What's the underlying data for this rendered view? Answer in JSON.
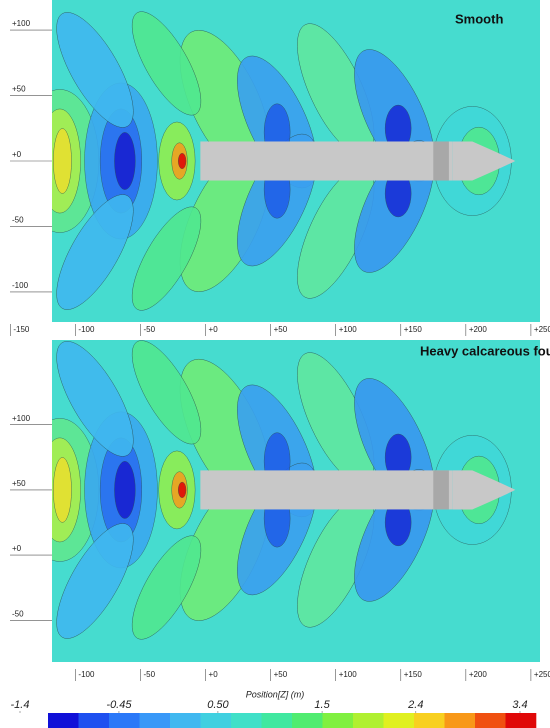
{
  "chart_data": [
    {
      "type": "contour",
      "title": "Smooth",
      "xlim": [
        -118,
        257
      ],
      "ylim": [
        -123,
        123
      ],
      "xticks": [
        {
          "value": -150,
          "label": "-150"
        },
        -100,
        -50,
        {
          "value": 0,
          "label": "+0"
        },
        {
          "value": 50,
          "label": "+50"
        },
        {
          "value": 100,
          "label": "+100"
        },
        {
          "value": 150,
          "label": "+150"
        },
        {
          "value": 200,
          "label": "+200"
        },
        {
          "value": 250,
          "label": "+250"
        }
      ],
      "yticks": [
        {
          "value": 100,
          "label": "+100"
        },
        {
          "value": 50,
          "label": "+50"
        },
        {
          "value": 0,
          "label": "+0"
        },
        -50,
        -100
      ]
    },
    {
      "type": "contour",
      "title": "Heavy calcareous fouling",
      "xlim": [
        -118,
        257
      ],
      "ylim": [
        -82,
        165
      ],
      "xticks": [
        -100,
        -50,
        {
          "value": 0,
          "label": "+0"
        },
        {
          "value": 50,
          "label": "+50"
        },
        {
          "value": 100,
          "label": "+100"
        },
        {
          "value": 150,
          "label": "+150"
        },
        {
          "value": 200,
          "label": "+200"
        },
        {
          "value": 250,
          "label": "+250"
        }
      ],
      "yticks": [
        {
          "value": 100,
          "label": "+100"
        },
        {
          "value": 50,
          "label": "+50"
        },
        {
          "value": 0,
          "label": "+0"
        },
        -50
      ]
    },
    {
      "type": "colorbar",
      "title": "Position[Z] (m)",
      "xlim": [
        -1.4,
        3.4
      ],
      "xticks": [
        -1.4,
        -0.45,
        {
          "value": 0.5,
          "label": "0.50"
        },
        1.5,
        2.4,
        3.4
      ],
      "colors": [
        "#1010d8",
        "#1e50f0",
        "#2a78f8",
        "#3898f8",
        "#40b8f0",
        "#40d0e0",
        "#40e0c8",
        "#40e8a0",
        "#50ec70",
        "#80f040",
        "#b0f030",
        "#e0f020",
        "#f8d020",
        "#f89818",
        "#f05010",
        "#e00808"
      ]
    }
  ]
}
